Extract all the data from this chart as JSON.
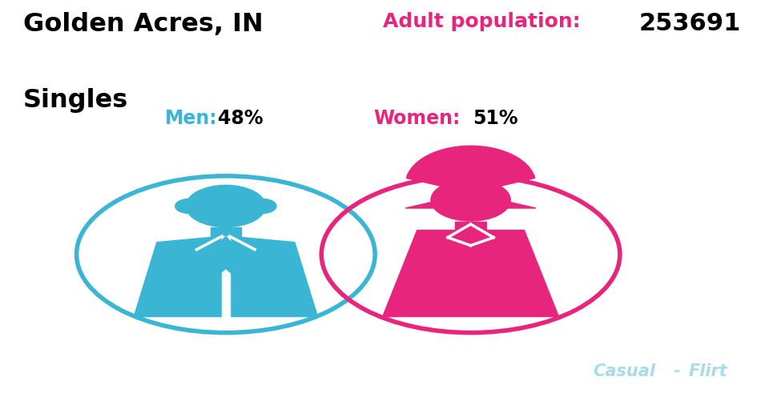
{
  "title_line1": "Golden Acres, IN",
  "title_line2": "Singles",
  "adult_label": "Adult population:",
  "adult_value": "253691",
  "men_label": "Men:",
  "men_pct": "48%",
  "women_label": "Women:",
  "women_pct": "51%",
  "male_color": "#3ab5d4",
  "female_color": "#e8257d",
  "watermark_casual": "Casual",
  "watermark_flirt": "Flirt",
  "watermark_color": "#a8dce8",
  "bg_color": "#ffffff",
  "title_color": "#000000",
  "adult_label_color": "#e8257d",
  "adult_value_color": "#000000",
  "men_label_color": "#3ab5d4",
  "men_pct_color": "#000000",
  "women_label_color": "#e8257d",
  "women_pct_color": "#000000"
}
